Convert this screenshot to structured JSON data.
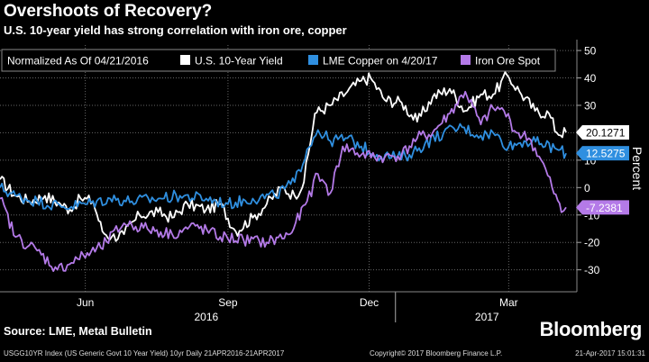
{
  "header": {
    "title": "Overshoots of Recovery?",
    "subtitle": "U.S. 10-year yield has strong correlation with iron ore, copper"
  },
  "source": "Source: LME, Metal Bulletin",
  "brand": "Bloomberg",
  "footer": {
    "left": "USGG10YR Index (US Generic Govt 10 Year Yield) 10yr  Daily 21APR2016-21APR2017",
    "center": "Copyright© 2017 Bloomberg Finance L.P.",
    "right": "21-Apr-2017 15:01:31"
  },
  "colors": {
    "background": "#000000",
    "yield": "#ffffff",
    "copper": "#2f8fe0",
    "iron_ore": "#b47ae8",
    "grid": "#666666"
  },
  "chart_data": {
    "type": "line",
    "legend_note": "Normalized As Of 04/21/2016",
    "ylabel": "Percent",
    "ylim": [
      -38,
      52
    ],
    "yticks": [
      -30,
      -20,
      -10,
      0,
      10,
      20,
      30,
      40,
      50
    ],
    "xlim": [
      "2016-04-21",
      "2017-04-21"
    ],
    "month_ticks": [
      {
        "label": "Jun",
        "date": "2016-06-15"
      },
      {
        "label": "Sep",
        "date": "2016-09-15"
      },
      {
        "label": "Dec",
        "date": "2016-12-15"
      },
      {
        "label": "Mar",
        "date": "2017-03-15"
      }
    ],
    "year_ticks": [
      {
        "label": "2016",
        "date": "2016-09-01"
      },
      {
        "label": "2017",
        "date": "2017-03-01"
      }
    ],
    "year_separator": "2017-01-01",
    "legend_position": "top-left",
    "series": [
      {
        "name": "U.S. 10-Year Yield",
        "color": "#ffffff",
        "last_label": "20.1271",
        "points": [
          [
            "2016-04-21",
            3
          ],
          [
            "2016-05-01",
            -3
          ],
          [
            "2016-05-10",
            -5
          ],
          [
            "2016-05-20",
            -3
          ],
          [
            "2016-05-30",
            -6
          ],
          [
            "2016-06-05",
            -8
          ],
          [
            "2016-06-12",
            -4
          ],
          [
            "2016-06-20",
            -5
          ],
          [
            "2016-06-26",
            -16
          ],
          [
            "2016-07-02",
            -18
          ],
          [
            "2016-07-10",
            -17
          ],
          [
            "2016-07-20",
            -10
          ],
          [
            "2016-08-01",
            -9
          ],
          [
            "2016-08-10",
            -11
          ],
          [
            "2016-08-20",
            -6
          ],
          [
            "2016-09-01",
            -8
          ],
          [
            "2016-09-10",
            -6
          ],
          [
            "2016-09-20",
            -16
          ],
          [
            "2016-10-01",
            -11
          ],
          [
            "2016-10-10",
            -6
          ],
          [
            "2016-10-20",
            0
          ],
          [
            "2016-10-28",
            -3
          ],
          [
            "2016-11-03",
            2
          ],
          [
            "2016-11-10",
            27
          ],
          [
            "2016-11-20",
            30
          ],
          [
            "2016-12-01",
            35
          ],
          [
            "2016-12-10",
            39
          ],
          [
            "2016-12-16",
            40
          ],
          [
            "2016-12-25",
            32
          ],
          [
            "2017-01-05",
            31
          ],
          [
            "2017-01-15",
            24
          ],
          [
            "2017-01-25",
            33
          ],
          [
            "2017-02-05",
            36
          ],
          [
            "2017-02-15",
            28
          ],
          [
            "2017-02-25",
            34
          ],
          [
            "2017-03-05",
            34
          ],
          [
            "2017-03-14",
            41
          ],
          [
            "2017-03-22",
            35
          ],
          [
            "2017-04-01",
            28
          ],
          [
            "2017-04-10",
            27
          ],
          [
            "2017-04-15",
            20
          ],
          [
            "2017-04-21",
            20.1271
          ]
        ]
      },
      {
        "name": "LME Copper on 4/20/17",
        "color": "#2f8fe0",
        "last_label": "12.5275",
        "points": [
          [
            "2016-04-21",
            0
          ],
          [
            "2016-05-01",
            -3
          ],
          [
            "2016-05-15",
            -5
          ],
          [
            "2016-06-01",
            -7
          ],
          [
            "2016-06-15",
            -6
          ],
          [
            "2016-07-01",
            -4
          ],
          [
            "2016-07-15",
            -5
          ],
          [
            "2016-08-01",
            -4
          ],
          [
            "2016-08-15",
            -3
          ],
          [
            "2016-09-01",
            -4
          ],
          [
            "2016-09-15",
            -6
          ],
          [
            "2016-10-01",
            -4
          ],
          [
            "2016-10-15",
            -3
          ],
          [
            "2016-10-28",
            2
          ],
          [
            "2016-11-05",
            14
          ],
          [
            "2016-11-12",
            21
          ],
          [
            "2016-11-20",
            17
          ],
          [
            "2016-12-01",
            18
          ],
          [
            "2016-12-10",
            15
          ],
          [
            "2016-12-20",
            12
          ],
          [
            "2017-01-01",
            11
          ],
          [
            "2017-01-10",
            12
          ],
          [
            "2017-01-20",
            16
          ],
          [
            "2017-02-01",
            20
          ],
          [
            "2017-02-13",
            22
          ],
          [
            "2017-02-25",
            19
          ],
          [
            "2017-03-05",
            20
          ],
          [
            "2017-03-15",
            15
          ],
          [
            "2017-03-25",
            17
          ],
          [
            "2017-04-05",
            16
          ],
          [
            "2017-04-15",
            14
          ],
          [
            "2017-04-21",
            12.5275
          ]
        ]
      },
      {
        "name": "Iron Ore Spot",
        "color": "#b47ae8",
        "last_label": "-7.2381",
        "points": [
          [
            "2016-04-21",
            -4
          ],
          [
            "2016-05-01",
            -18
          ],
          [
            "2016-05-15",
            -23
          ],
          [
            "2016-05-28",
            -30
          ],
          [
            "2016-06-10",
            -26
          ],
          [
            "2016-06-25",
            -22
          ],
          [
            "2016-07-10",
            -13
          ],
          [
            "2016-07-25",
            -15
          ],
          [
            "2016-08-10",
            -17
          ],
          [
            "2016-08-25",
            -14
          ],
          [
            "2016-09-10",
            -18
          ],
          [
            "2016-09-25",
            -19
          ],
          [
            "2016-10-10",
            -20
          ],
          [
            "2016-10-25",
            -17
          ],
          [
            "2016-11-05",
            -5
          ],
          [
            "2016-11-12",
            5
          ],
          [
            "2016-11-20",
            -2
          ],
          [
            "2016-11-28",
            15
          ],
          [
            "2016-12-10",
            12
          ],
          [
            "2016-12-25",
            11
          ],
          [
            "2017-01-05",
            12
          ],
          [
            "2017-01-15",
            18
          ],
          [
            "2017-01-25",
            20
          ],
          [
            "2017-02-05",
            27
          ],
          [
            "2017-02-15",
            35
          ],
          [
            "2017-02-25",
            23
          ],
          [
            "2017-03-05",
            29
          ],
          [
            "2017-03-12",
            28
          ],
          [
            "2017-03-20",
            20
          ],
          [
            "2017-03-28",
            18
          ],
          [
            "2017-04-05",
            10
          ],
          [
            "2017-04-12",
            0
          ],
          [
            "2017-04-18",
            -9
          ],
          [
            "2017-04-21",
            -7.2381
          ]
        ]
      }
    ]
  }
}
